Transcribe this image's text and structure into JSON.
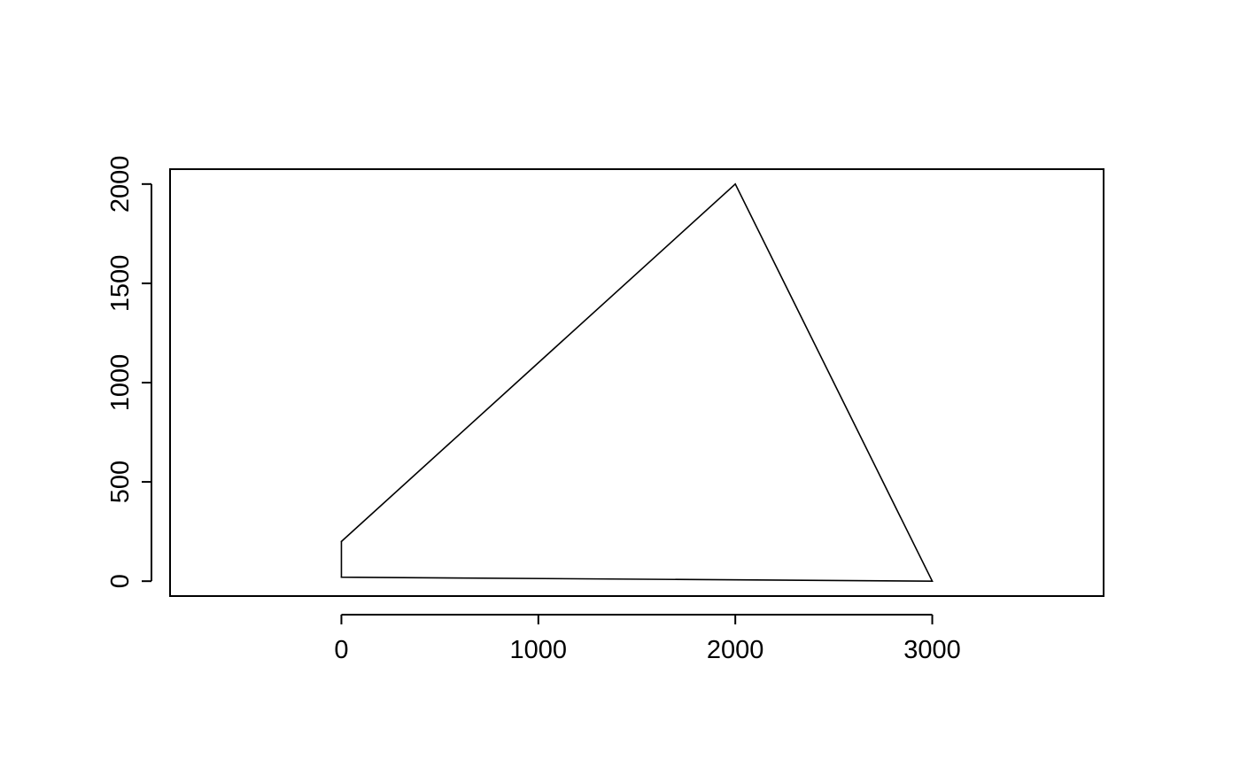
{
  "chart_data": {
    "type": "line",
    "title": "",
    "xlabel": "",
    "ylabel": "",
    "xlim": [
      -870,
      3870
    ],
    "ylim": [
      -75,
      2075
    ],
    "x_ticks": [
      0,
      1000,
      2000,
      3000
    ],
    "x_tick_labels": [
      "0",
      "1000",
      "2000",
      "3000"
    ],
    "y_ticks": [
      0,
      500,
      1000,
      1500,
      2000
    ],
    "y_tick_labels": [
      "0",
      "500",
      "1000",
      "1500",
      "2000"
    ],
    "grid": false,
    "series": [
      {
        "closed": true,
        "x": [
          0,
          2000,
          3000,
          0,
          0
        ],
        "y": [
          200,
          2000,
          0,
          20,
          200
        ]
      }
    ],
    "colors": {
      "line": "#000000",
      "frame": "#000000",
      "background": "#ffffff"
    }
  }
}
